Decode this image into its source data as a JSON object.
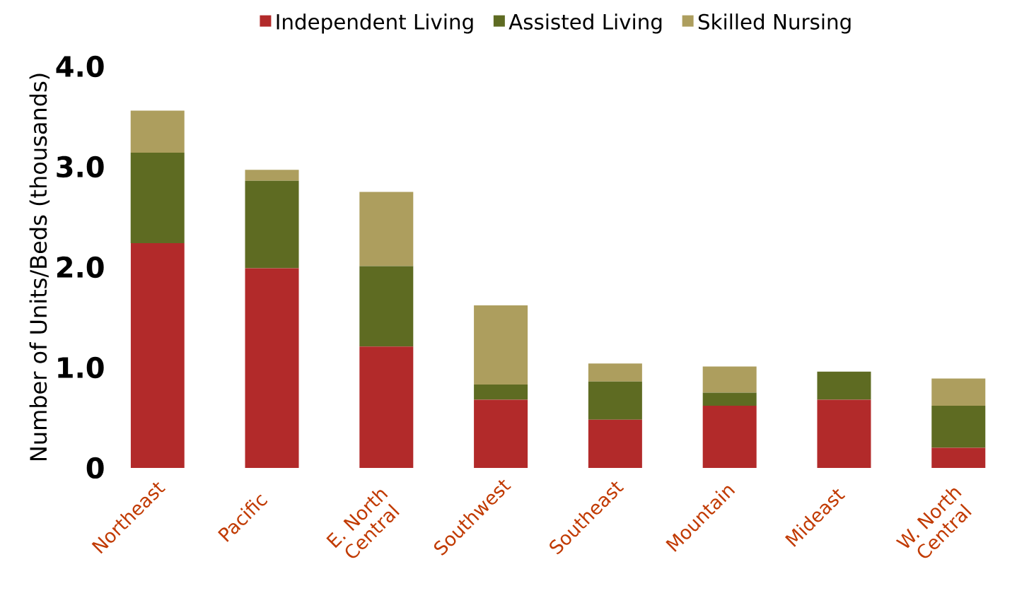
{
  "chart_data": {
    "type": "bar",
    "stacked": true,
    "ylabel": "Number of Units/Beds (thousands)",
    "categories": [
      "Northeast",
      "Pacific",
      "E. North Central",
      "Southwest",
      "Southeast",
      "Mountain",
      "Mideast",
      "W. North Central"
    ],
    "series": [
      {
        "name": "Independent Living",
        "color": "#b22a2a",
        "values": [
          2.24,
          1.99,
          1.21,
          0.68,
          0.48,
          0.62,
          0.68,
          0.2
        ]
      },
      {
        "name": "Assisted Living",
        "color": "#5e6b22",
        "values": [
          0.9,
          0.87,
          0.8,
          0.15,
          0.38,
          0.13,
          0.28,
          0.42
        ]
      },
      {
        "name": "Skilled Nursing",
        "color": "#ad9e5e",
        "values": [
          0.42,
          0.11,
          0.74,
          0.79,
          0.18,
          0.26,
          0,
          0.27
        ]
      }
    ],
    "ylim": [
      0,
      4.0
    ],
    "yticks": [
      {
        "value": 0,
        "label": "0"
      },
      {
        "value": 1,
        "label": "1.0"
      },
      {
        "value": 2,
        "label": "2.0"
      },
      {
        "value": 3,
        "label": "3.0"
      },
      {
        "value": 4,
        "label": "4.0"
      }
    ],
    "grid": false,
    "legend": "top"
  }
}
